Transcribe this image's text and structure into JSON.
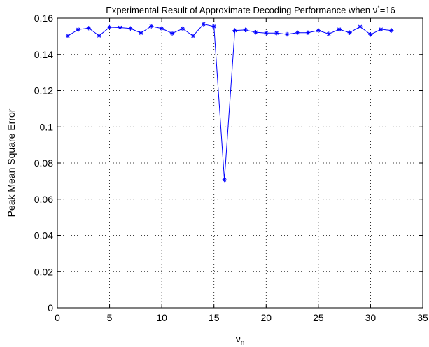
{
  "chart_data": {
    "type": "line",
    "title_main": "Experimental Result of Approximate Decoding Performance when ν",
    "title_sup": "*",
    "title_tail": "=16",
    "xlabel_main": "ν",
    "xlabel_sub": "n",
    "ylabel": "Peak Mean Square Error",
    "xlim": [
      0,
      35
    ],
    "ylim": [
      0,
      0.16
    ],
    "xticks": [
      "0",
      "5",
      "10",
      "15",
      "20",
      "25",
      "30",
      "35"
    ],
    "yticks": [
      "0",
      "0.02",
      "0.04",
      "0.06",
      "0.08",
      "0.1",
      "0.12",
      "0.14",
      "0.16"
    ],
    "grid": true,
    "series": [
      {
        "color": "#0000ff",
        "marker": "*",
        "x": [
          1,
          2,
          3,
          4,
          5,
          6,
          7,
          8,
          9,
          10,
          11,
          12,
          13,
          14,
          15,
          16,
          17,
          18,
          19,
          20,
          21,
          22,
          23,
          24,
          25,
          26,
          27,
          28,
          29,
          30,
          31,
          32
        ],
        "values": [
          0.1502,
          0.1537,
          0.1545,
          0.1503,
          0.155,
          0.1548,
          0.1543,
          0.1518,
          0.1555,
          0.1543,
          0.1516,
          0.1542,
          0.1502,
          0.1567,
          0.1554,
          0.0707,
          0.1532,
          0.1535,
          0.1522,
          0.1518,
          0.1518,
          0.1511,
          0.152,
          0.152,
          0.1532,
          0.1513,
          0.1538,
          0.152,
          0.1553,
          0.151,
          0.1538,
          0.1532
        ]
      }
    ]
  }
}
